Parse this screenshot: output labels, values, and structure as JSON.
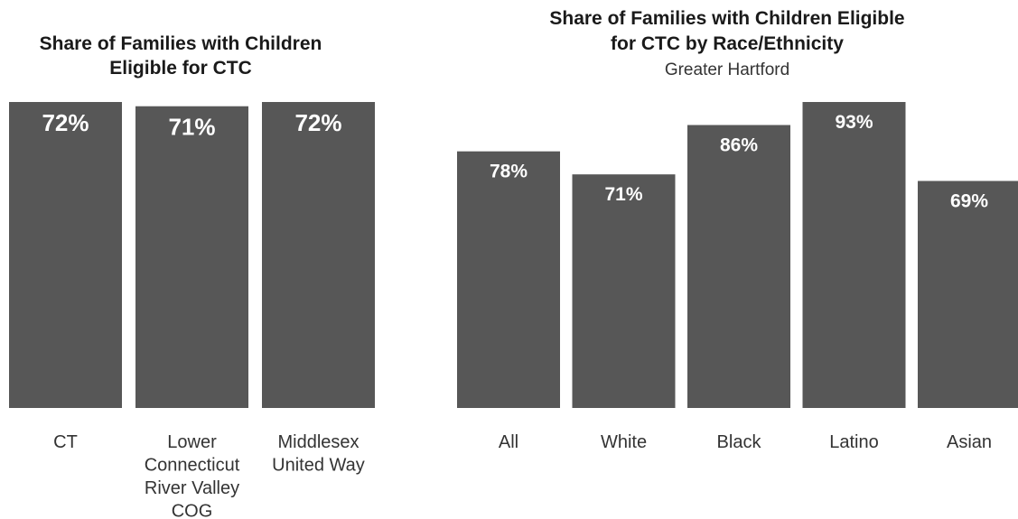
{
  "chart_data": [
    {
      "type": "bar",
      "title_lines": [
        "Share of Families with Children",
        "Eligible for CTC"
      ],
      "subtitle": "",
      "categories": [
        [
          "CT"
        ],
        [
          "Lower",
          "Connecticut",
          "River Valley",
          "COG"
        ],
        [
          "Middlesex",
          "United Way"
        ]
      ],
      "values": [
        72,
        71,
        72
      ],
      "value_labels": [
        "72%",
        "71%",
        "72%"
      ],
      "ylim": [
        0,
        72
      ],
      "bar_color": "#575757"
    },
    {
      "type": "bar",
      "title_lines": [
        "Share of Families with Children Eligible",
        "for CTC by Race/Ethnicity"
      ],
      "subtitle": "Greater Hartford",
      "categories": [
        [
          "All"
        ],
        [
          "White"
        ],
        [
          "Black"
        ],
        [
          "Latino"
        ],
        [
          "Asian"
        ]
      ],
      "values": [
        78,
        71,
        86,
        93,
        69
      ],
      "value_labels": [
        "78%",
        "71%",
        "86%",
        "93%",
        "69%"
      ],
      "ylim": [
        0,
        93
      ],
      "bar_color": "#575757"
    }
  ]
}
